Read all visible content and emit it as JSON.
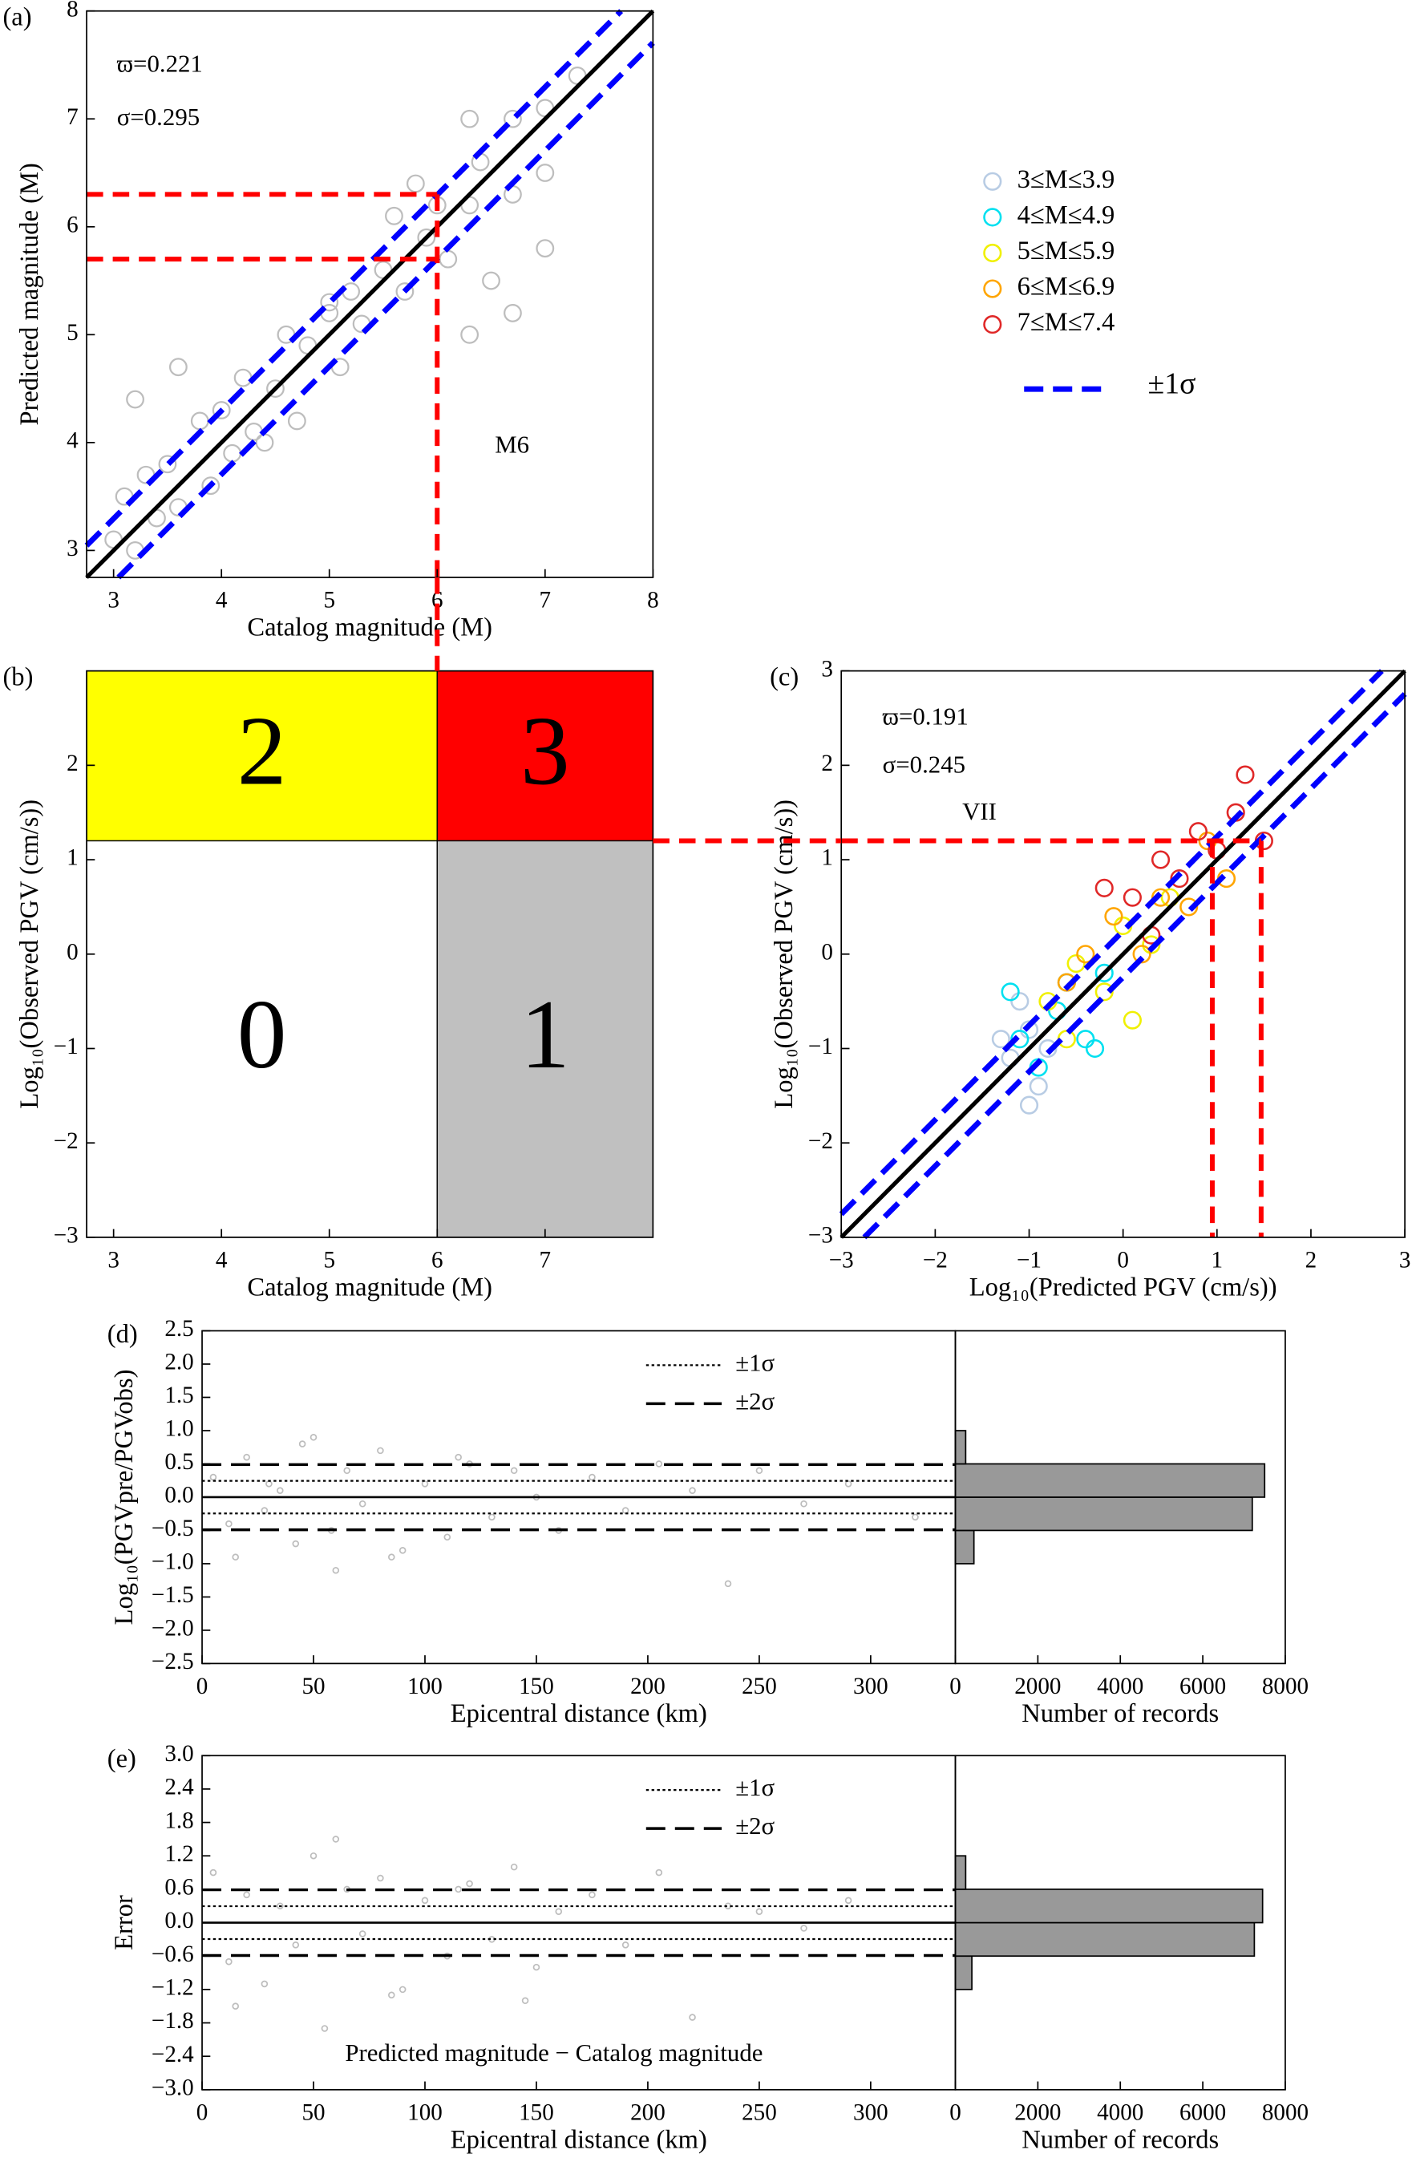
{
  "chart_data": [
    {
      "type": "scatter",
      "panel": "(a)",
      "xlabel": "Catalog magnitude (M)",
      "ylabel": "Predicted magnitude (M)",
      "xlim": [
        2.75,
        8
      ],
      "ylim": [
        2.75,
        8
      ],
      "xticks": [
        3,
        4,
        5,
        6,
        7,
        8
      ],
      "yticks": [
        3,
        4,
        5,
        6,
        7,
        8
      ],
      "points": {
        "color": "#bdbdbd",
        "x": [
          3.0,
          3.1,
          3.2,
          3.3,
          3.4,
          3.5,
          3.6,
          3.8,
          3.9,
          4.0,
          4.1,
          4.2,
          4.3,
          4.5,
          4.6,
          4.7,
          4.8,
          5.0,
          5.1,
          5.2,
          5.3,
          5.5,
          5.6,
          5.7,
          5.8,
          5.9,
          6.0,
          6.1,
          6.3,
          6.3,
          6.3,
          6.4,
          6.5,
          6.7,
          6.7,
          6.7,
          7.0,
          7.0,
          7.0,
          7.3,
          3.2,
          3.6,
          4.4,
          5.0
        ],
        "y": [
          3.1,
          3.5,
          3.0,
          3.7,
          3.3,
          3.8,
          3.4,
          4.2,
          3.6,
          4.3,
          3.9,
          4.6,
          4.1,
          4.5,
          5.0,
          4.2,
          4.9,
          5.3,
          4.7,
          5.4,
          5.1,
          5.6,
          6.1,
          5.4,
          6.4,
          5.9,
          6.2,
          5.7,
          7.0,
          6.2,
          5.0,
          6.6,
          5.5,
          7.0,
          6.3,
          5.2,
          7.1,
          6.5,
          5.8,
          7.4,
          4.4,
          4.7,
          4.0,
          5.2
        ]
      },
      "reference_lines": [
        {
          "offset": 0,
          "color": "#000000",
          "style": "solid"
        },
        {
          "offset": 0.295,
          "color": "#0000ff",
          "style": "dashed"
        },
        {
          "offset": -0.295,
          "color": "#0000ff",
          "style": "dashed"
        }
      ],
      "guides": [
        {
          "x": [
            2.75,
            6
          ],
          "y": [
            6.3,
            6.3
          ]
        },
        {
          "x": [
            2.75,
            6
          ],
          "y": [
            5.7,
            5.7
          ]
        },
        {
          "x": [
            6,
            6
          ],
          "y": [
            6.3,
            2.75
          ]
        }
      ],
      "guide_color": "#ff0000",
      "annotations": [
        "ϖ=0.221",
        "σ=0.295",
        "M6"
      ]
    },
    {
      "type": "regions",
      "panel": "(b)",
      "xlabel": "Catalog magnitude (M)",
      "ylabel": "Log₁₀(Observed PGV (cm/s))",
      "xlim": [
        2.75,
        8
      ],
      "ylim": [
        -3,
        3
      ],
      "xticks": [
        3,
        4,
        5,
        6,
        7
      ],
      "yticks": [
        {
          "value": -3,
          "label": "−3"
        },
        {
          "value": -2,
          "label": "−2"
        },
        {
          "value": -1,
          "label": "−1"
        },
        0,
        1,
        2
      ],
      "regions": [
        {
          "label": "2",
          "color": "#ffff00",
          "x": [
            2.75,
            6
          ],
          "y": [
            1.2,
            3
          ]
        },
        {
          "label": "3",
          "color": "#ff0000",
          "x": [
            6,
            8
          ],
          "y": [
            1.2,
            3
          ]
        },
        {
          "label": "0",
          "color": "#ffffff",
          "x": [
            2.75,
            6
          ],
          "y": [
            -3,
            1.2
          ]
        },
        {
          "label": "1",
          "color": "#c0c0c0",
          "x": [
            6,
            8
          ],
          "y": [
            -3,
            1.2
          ]
        }
      ]
    },
    {
      "type": "scatter",
      "panel": "(c)",
      "xlabel": "Log₁₀(Predicted PGV (cm/s))",
      "ylabel": "Log₁₀(Observed PGV (cm/s))",
      "xlim": [
        -3,
        3
      ],
      "ylim": [
        -3,
        3
      ],
      "xticks": [
        {
          "value": -3,
          "label": "−3"
        },
        {
          "value": -2,
          "label": "−2"
        },
        {
          "value": -1,
          "label": "−1"
        },
        0,
        1,
        2,
        3
      ],
      "yticks": [
        {
          "value": -3,
          "label": "−3"
        },
        {
          "value": -2,
          "label": "−2"
        },
        {
          "value": -1,
          "label": "−1"
        },
        0,
        1,
        2,
        3
      ],
      "series": [
        {
          "name": "3≤M≤3.9",
          "color": "#b8cce4",
          "x": [
            -1.2,
            -1.0,
            -0.9,
            -1.1,
            -0.8,
            -1.3,
            -0.7,
            -1.0
          ],
          "y": [
            -1.1,
            -0.8,
            -1.4,
            -0.5,
            -1.0,
            -0.9,
            -0.6,
            -1.6
          ]
        },
        {
          "name": "4≤M≤4.9",
          "color": "#00e0f0",
          "x": [
            -1.1,
            -0.9,
            -0.6,
            -0.4,
            -1.2,
            -0.7,
            -0.2,
            -0.3
          ],
          "y": [
            -0.9,
            -1.2,
            -0.3,
            -0.9,
            -0.4,
            -0.6,
            -0.2,
            -1.0
          ]
        },
        {
          "name": "5≤M≤5.9",
          "color": "#f0f000",
          "x": [
            -0.8,
            -0.5,
            -0.2,
            0.0,
            0.3,
            -0.6,
            0.1,
            0.5
          ],
          "y": [
            -0.5,
            -0.1,
            -0.4,
            0.3,
            0.1,
            -0.9,
            -0.7,
            0.6
          ]
        },
        {
          "name": "6≤M≤6.9",
          "color": "#ffa500",
          "x": [
            -0.4,
            -0.1,
            0.2,
            0.4,
            0.7,
            0.9,
            -0.6,
            1.1
          ],
          "y": [
            0.0,
            0.4,
            0.0,
            0.6,
            0.5,
            1.2,
            -0.3,
            0.8
          ]
        },
        {
          "name": "7≤M≤7.4",
          "color": "#e02828",
          "x": [
            0.1,
            0.4,
            0.6,
            0.8,
            1.0,
            1.2,
            1.3,
            1.5,
            -0.2,
            0.3
          ],
          "y": [
            0.6,
            1.0,
            0.8,
            1.3,
            1.1,
            1.5,
            1.9,
            1.2,
            0.7,
            0.2
          ]
        }
      ],
      "reference_lines": [
        {
          "offset": 0,
          "color": "#000000",
          "style": "solid"
        },
        {
          "offset": 0.245,
          "color": "#0000ff",
          "style": "dashed",
          "label": "±1σ"
        },
        {
          "offset": -0.245,
          "color": "#0000ff",
          "style": "dashed"
        }
      ],
      "guides": [
        {
          "x": [
            -3,
            1.47
          ],
          "y": [
            1.2,
            1.2
          ]
        },
        {
          "x": [
            0.95,
            0.95
          ],
          "y": [
            1.2,
            -3
          ]
        },
        {
          "x": [
            1.47,
            1.47
          ],
          "y": [
            1.2,
            -3
          ]
        }
      ],
      "guide_color": "#ff0000",
      "annotations": [
        "ϖ=0.191",
        "σ=0.245",
        "VII"
      ]
    },
    {
      "type": "residual",
      "panel": "(d)",
      "xlabel": "Epicentral distance (km)",
      "ylabel": "Log₁₀(PGVpre/PGVobs)",
      "xlim": [
        0,
        338
      ],
      "ylim": [
        -2.5,
        2.5
      ],
      "xticks": [
        0,
        50,
        100,
        150,
        200,
        250,
        300
      ],
      "yticks": [
        {
          "value": -2.5,
          "label": "−2.5"
        },
        {
          "value": -2,
          "label": "−2.0"
        },
        {
          "value": -1.5,
          "label": "−1.5"
        },
        {
          "value": -1,
          "label": "−1.0"
        },
        {
          "value": -0.5,
          "label": "−0.5"
        },
        {
          "value": 0,
          "label": "0.0"
        },
        0.5,
        {
          "value": 1,
          "label": "1.0"
        },
        1.5,
        {
          "value": 2,
          "label": "2.0"
        },
        2.5
      ],
      "points": {
        "color": "#bdbdbd",
        "x": [
          5,
          12,
          20,
          28,
          35,
          42,
          50,
          58,
          65,
          72,
          80,
          90,
          100,
          110,
          120,
          130,
          140,
          150,
          160,
          175,
          190,
          205,
          220,
          236,
          250,
          270,
          290,
          320,
          15,
          45,
          85,
          115,
          60,
          30
        ],
        "y": [
          0.3,
          -0.4,
          0.6,
          -0.2,
          0.1,
          -0.7,
          0.9,
          -0.5,
          0.4,
          -0.1,
          0.7,
          -0.8,
          0.2,
          -0.6,
          0.5,
          -0.3,
          0.4,
          0.0,
          -0.5,
          0.3,
          -0.2,
          0.5,
          0.1,
          -1.3,
          0.4,
          -0.1,
          0.2,
          -0.3,
          -0.9,
          0.8,
          -0.9,
          0.6,
          -1.1,
          0.2
        ]
      },
      "hlines": [
        {
          "y": 0,
          "style": "solid"
        },
        {
          "y": 0.245,
          "style": "dotted",
          "label": "±1σ"
        },
        {
          "y": -0.245,
          "style": "dotted"
        },
        {
          "y": 0.49,
          "style": "dashed",
          "label": "±2σ"
        },
        {
          "y": -0.49,
          "style": "dashed"
        }
      ],
      "histogram": {
        "xlabel": "Number of records",
        "xlim": [
          0,
          8000
        ],
        "xticks": [
          0,
          2000,
          4000,
          6000,
          8000
        ],
        "bins": [
          -1,
          -0.5,
          0,
          0.5,
          1
        ],
        "counts": [
          450,
          7200,
          7500,
          250
        ],
        "color": "#999999"
      }
    },
    {
      "type": "residual",
      "panel": "(e)",
      "xlabel": "Epicentral distance (km)",
      "ylabel": "Error",
      "xlim": [
        0,
        338
      ],
      "ylim": [
        -3,
        3
      ],
      "xticks": [
        0,
        50,
        100,
        150,
        200,
        250,
        300
      ],
      "yticks": [
        {
          "value": -3,
          "label": "−3.0"
        },
        {
          "value": -2.4,
          "label": "−2.4"
        },
        {
          "value": -1.8,
          "label": "−1.8"
        },
        {
          "value": -1.2,
          "label": "−1.2"
        },
        {
          "value": -0.6,
          "label": "−0.6"
        },
        {
          "value": 0,
          "label": "0.0"
        },
        0.6,
        1.2,
        1.8,
        2.4,
        {
          "value": 3,
          "label": "3.0"
        }
      ],
      "points": {
        "color": "#bdbdbd",
        "x": [
          5,
          12,
          20,
          28,
          35,
          42,
          50,
          55,
          65,
          72,
          80,
          90,
          100,
          110,
          120,
          130,
          140,
          150,
          160,
          175,
          190,
          205,
          220,
          236,
          250,
          270,
          290,
          15,
          60,
          85,
          115,
          145
        ],
        "y": [
          0.9,
          -0.7,
          0.5,
          -1.1,
          0.3,
          -0.4,
          1.2,
          -1.9,
          0.6,
          -0.2,
          0.8,
          -1.2,
          0.4,
          -0.6,
          0.7,
          -0.3,
          1.0,
          -0.8,
          0.2,
          0.5,
          -0.4,
          0.9,
          -1.7,
          0.3,
          0.2,
          -0.1,
          0.4,
          -1.5,
          1.5,
          -1.3,
          0.6,
          -1.4
        ]
      },
      "hlines": [
        {
          "y": 0,
          "style": "solid"
        },
        {
          "y": 0.295,
          "style": "dotted",
          "label": "±1σ"
        },
        {
          "y": -0.295,
          "style": "dotted"
        },
        {
          "y": 0.59,
          "style": "dashed",
          "label": "±2σ"
        },
        {
          "y": -0.59,
          "style": "dashed"
        }
      ],
      "histogram": {
        "xlabel": "Number of records",
        "xlim": [
          0,
          8000
        ],
        "xticks": [
          0,
          2000,
          4000,
          6000,
          8000
        ],
        "bins": [
          -1.2,
          -0.6,
          0,
          0.6,
          1.2
        ],
        "counts": [
          400,
          7250,
          7450,
          250
        ],
        "color": "#999999"
      },
      "annotations": [
        "Predicted magnitude − Catalog magnitude"
      ]
    }
  ]
}
